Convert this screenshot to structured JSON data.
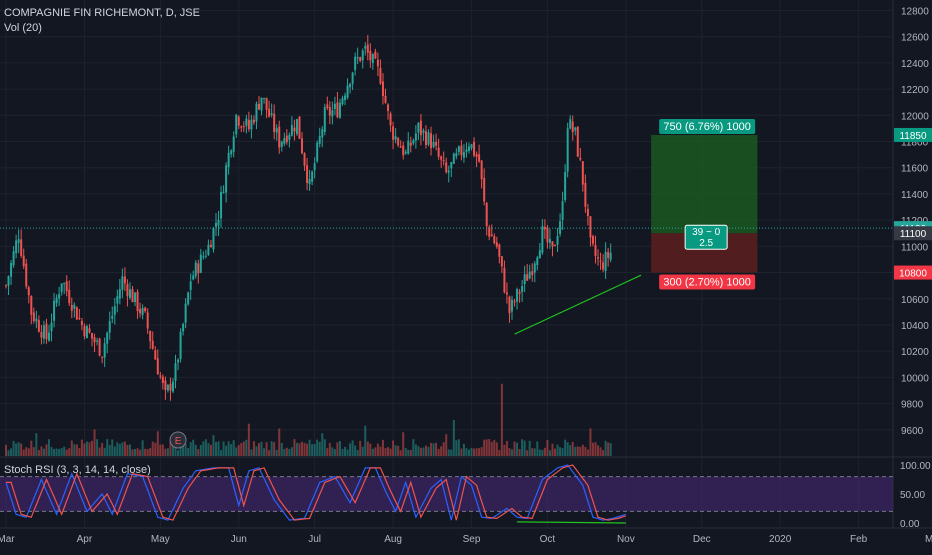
{
  "header": {
    "symbol_title": "COMPAGNIE FIN RICHEMONT, D, JSE",
    "volume_label": "Vol (20)",
    "rsi_label": "Stoch RSI (3, 3, 14, 14, close)",
    "earnings_marker": "E"
  },
  "colors": {
    "background": "#131722",
    "grid": "#1e222d",
    "up": "#26a69a",
    "down": "#ef5350",
    "target_zone": "#1b5e20",
    "stop_zone": "#5d1f1f",
    "trendline": "#1fc41f",
    "rsi_band": "#4a2a7a",
    "rsi_k": "#2962ff",
    "rsi_d": "#ef5350"
  },
  "chart_data": [
    {
      "type": "candlestick",
      "ylim": [
        9400,
        12880
      ],
      "y_ticks": [
        "12800",
        "12600",
        "12400",
        "12200",
        "12000",
        "11800",
        "11600",
        "11400",
        "11200",
        "11000",
        "10800",
        "10600",
        "10400",
        "10200",
        "10000",
        "9800",
        "9600"
      ],
      "x_ticks": [
        "Mar",
        "Apr",
        "May",
        "Jun",
        "Jul",
        "Aug",
        "Sep",
        "Oct",
        "Nov",
        "Dec",
        "2020",
        "Feb",
        "Ma"
      ],
      "x_range_days": [
        0,
        365
      ],
      "price_anchors": [
        [
          0,
          10700
        ],
        [
          5,
          11100
        ],
        [
          10,
          10500
        ],
        [
          16,
          10300
        ],
        [
          22,
          10750
        ],
        [
          30,
          10400
        ],
        [
          38,
          10200
        ],
        [
          46,
          10750
        ],
        [
          55,
          10450
        ],
        [
          63,
          9850
        ],
        [
          67,
          10050
        ],
        [
          73,
          10750
        ],
        [
          80,
          11000
        ],
        [
          84,
          11250
        ],
        [
          87,
          11600
        ],
        [
          91,
          12000
        ],
        [
          96,
          11900
        ],
        [
          101,
          12150
        ],
        [
          108,
          11800
        ],
        [
          115,
          11950
        ],
        [
          120,
          11450
        ],
        [
          126,
          12000
        ],
        [
          131,
          12050
        ],
        [
          138,
          12400
        ],
        [
          142,
          12500
        ],
        [
          148,
          12300
        ],
        [
          152,
          11900
        ],
        [
          158,
          11700
        ],
        [
          163,
          11900
        ],
        [
          168,
          11800
        ],
        [
          174,
          11550
        ],
        [
          179,
          11700
        ],
        [
          183,
          11800
        ],
        [
          187,
          11650
        ],
        [
          190,
          11150
        ],
        [
          194,
          11000
        ],
        [
          199,
          10500
        ],
        [
          204,
          10700
        ],
        [
          208,
          10850
        ],
        [
          212,
          11100
        ],
        [
          216,
          10950
        ],
        [
          220,
          11300
        ],
        [
          222,
          11950
        ],
        [
          225,
          11850
        ],
        [
          228,
          11500
        ],
        [
          231,
          11000
        ],
        [
          235,
          10850
        ],
        [
          239,
          10950
        ]
      ],
      "volume_scale_max": 4000,
      "volume_spikes": [
        [
          12,
          1200
        ],
        [
          35,
          1400
        ],
        [
          60,
          1300
        ],
        [
          82,
          1100
        ],
        [
          96,
          1700
        ],
        [
          108,
          1450
        ],
        [
          125,
          1200
        ],
        [
          142,
          1600
        ],
        [
          157,
          1250
        ],
        [
          174,
          1150
        ],
        [
          177,
          1900
        ],
        [
          196,
          3800
        ],
        [
          231,
          1450
        ]
      ],
      "current_price": "11139",
      "price_labels": [
        {
          "text": "11850",
          "price": 11850,
          "kind": "target"
        },
        {
          "text": "11139",
          "price": 11139,
          "kind": "current"
        },
        {
          "text": "11100",
          "price": 11100,
          "kind": "entry"
        },
        {
          "text": "10800",
          "price": 10800,
          "kind": "stop"
        }
      ],
      "position_tool": {
        "entry": 11100,
        "target": 11850,
        "stop": 10800,
        "start_day": 255,
        "end_day": 297,
        "target_label": "750 (6.76%) 1000",
        "stop_label": "300 (2.70%) 1000",
        "ratio_line1": "39 ~ 0",
        "ratio_line2": "2.5"
      },
      "trendline": {
        "from": [
          201,
          10330
        ],
        "to": [
          251,
          10780
        ]
      }
    },
    {
      "type": "line",
      "name": "Stoch RSI",
      "ylim": [
        0,
        100
      ],
      "y_ticks": [
        "100.00",
        "50.00",
        "0.00"
      ],
      "band": [
        20,
        80
      ],
      "k_series_anchors": [
        [
          0,
          70
        ],
        [
          4,
          15
        ],
        [
          8,
          10
        ],
        [
          14,
          75
        ],
        [
          20,
          15
        ],
        [
          26,
          85
        ],
        [
          32,
          20
        ],
        [
          38,
          50
        ],
        [
          42,
          15
        ],
        [
          48,
          85
        ],
        [
          54,
          80
        ],
        [
          60,
          10
        ],
        [
          64,
          5
        ],
        [
          70,
          60
        ],
        [
          75,
          90
        ],
        [
          82,
          95
        ],
        [
          88,
          95
        ],
        [
          92,
          30
        ],
        [
          96,
          90
        ],
        [
          100,
          95
        ],
        [
          106,
          40
        ],
        [
          112,
          5
        ],
        [
          118,
          8
        ],
        [
          124,
          70
        ],
        [
          130,
          80
        ],
        [
          136,
          35
        ],
        [
          142,
          95
        ],
        [
          146,
          95
        ],
        [
          150,
          55
        ],
        [
          154,
          20
        ],
        [
          158,
          70
        ],
        [
          162,
          10
        ],
        [
          168,
          60
        ],
        [
          172,
          75
        ],
        [
          176,
          5
        ],
        [
          180,
          80
        ],
        [
          184,
          65
        ],
        [
          188,
          10
        ],
        [
          192,
          8
        ],
        [
          198,
          25
        ],
        [
          202,
          10
        ],
        [
          206,
          8
        ],
        [
          212,
          75
        ],
        [
          218,
          95
        ],
        [
          222,
          100
        ],
        [
          228,
          65
        ],
        [
          232,
          10
        ],
        [
          236,
          5
        ],
        [
          240,
          8
        ],
        [
          245,
          15
        ]
      ],
      "divergence_line": {
        "from": [
          202,
          2
        ],
        "to": [
          245,
          0
        ]
      }
    }
  ]
}
